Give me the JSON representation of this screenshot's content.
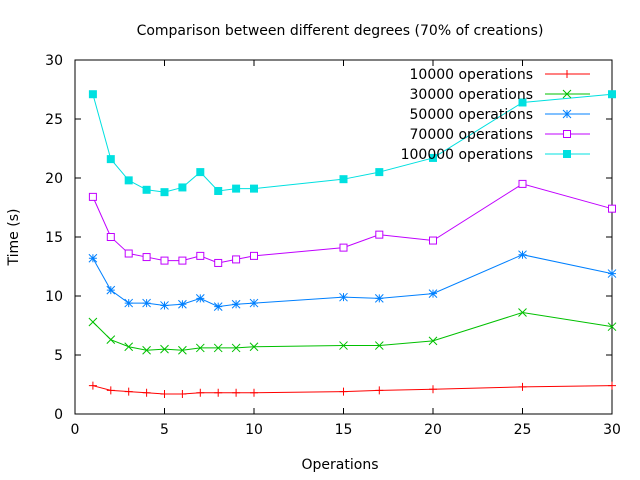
{
  "chart_data": {
    "type": "line",
    "title": "Comparison between different degrees (70% of creations)",
    "xlabel": "Operations",
    "ylabel": "Time (s)",
    "xlim": [
      0,
      30
    ],
    "ylim": [
      0,
      30
    ],
    "xticks": [
      0,
      5,
      10,
      15,
      20,
      25,
      30
    ],
    "yticks": [
      0,
      5,
      10,
      15,
      20,
      25,
      30
    ],
    "grid": false,
    "legend_position": "top-right",
    "x": [
      1,
      2,
      3,
      4,
      5,
      6,
      7,
      8,
      9,
      10,
      15,
      17,
      20,
      25,
      30
    ],
    "series": [
      {
        "name": "10000 operations",
        "color": "#ff0000",
        "marker": "plus",
        "values": [
          2.4,
          2.0,
          1.9,
          1.8,
          1.7,
          1.7,
          1.8,
          1.8,
          1.8,
          1.8,
          1.9,
          2.0,
          2.1,
          2.3,
          2.4
        ]
      },
      {
        "name": "30000 operations",
        "color": "#00c000",
        "marker": "cross",
        "values": [
          7.8,
          6.3,
          5.7,
          5.4,
          5.5,
          5.4,
          5.6,
          5.6,
          5.6,
          5.7,
          5.8,
          5.8,
          6.2,
          8.6,
          7.4
        ]
      },
      {
        "name": "50000 operations",
        "color": "#0080ff",
        "marker": "star",
        "values": [
          13.2,
          10.5,
          9.4,
          9.4,
          9.2,
          9.3,
          9.8,
          9.1,
          9.3,
          9.4,
          9.9,
          9.8,
          10.2,
          13.5,
          11.9
        ]
      },
      {
        "name": "70000 operations",
        "color": "#c000ff",
        "marker": "open-square",
        "values": [
          18.4,
          15.0,
          13.6,
          13.3,
          13.0,
          13.0,
          13.4,
          12.8,
          13.1,
          13.4,
          14.1,
          15.2,
          14.7,
          19.5,
          17.4
        ]
      },
      {
        "name": "100000 operations",
        "color": "#00e0e0",
        "marker": "filled-square",
        "values": [
          27.1,
          21.6,
          19.8,
          19.0,
          18.8,
          19.2,
          20.5,
          18.9,
          19.1,
          19.1,
          19.9,
          20.5,
          21.7,
          26.4,
          27.1
        ]
      }
    ]
  }
}
